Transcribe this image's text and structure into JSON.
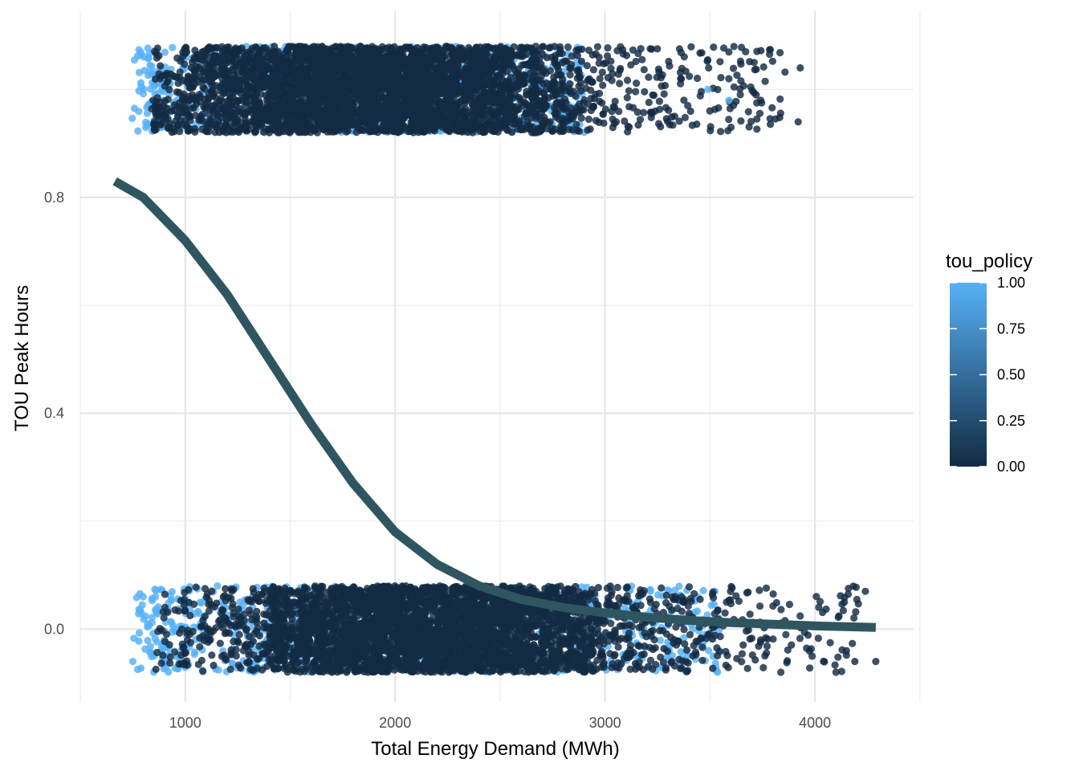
{
  "chart_data": {
    "type": "scatter",
    "title": "",
    "xlabel": "Total Energy Demand (MWh)",
    "ylabel": "TOU Peak Hours",
    "xlim": [
      500,
      4470
    ],
    "ylim": [
      -0.135,
      1.145
    ],
    "x_ticks": [
      1000,
      2000,
      3000,
      4000
    ],
    "x_tick_labels": [
      "1000",
      "2000",
      "3000",
      "4000"
    ],
    "y_ticks": [
      0.0,
      0.4,
      0.8
    ],
    "y_tick_labels": [
      "0.0",
      "0.4",
      "0.8"
    ],
    "grid": true,
    "legend": {
      "title": "tou_policy",
      "position": "right",
      "type": "colorbar",
      "range": [
        0,
        1
      ],
      "tick_labels": [
        "1.00",
        "0.75",
        "0.50",
        "0.25",
        "0.00"
      ],
      "tick_values": [
        1.0,
        0.75,
        0.5,
        0.25,
        0.0
      ],
      "color_low": "#132B43",
      "color_high": "#56B1F7"
    },
    "series": [
      {
        "kind": "jittered-points",
        "y_level": 1,
        "jitter": 0.08,
        "point_colors": {
          "policy_0": "#132B43",
          "policy_1": "#56B1F7"
        },
        "x_range": [
          740,
          3940
        ],
        "dense_range": [
          1100,
          2650
        ],
        "extreme_points": [
          [
            3930,
            1.04
          ],
          [
            3920,
            0.94
          ],
          [
            3670,
            1.07
          ],
          [
            3710,
            1.05
          ],
          [
            3590,
            1.02
          ],
          [
            3600,
            0.93
          ],
          [
            3490,
            1.0
          ],
          [
            3590,
            0.98
          ],
          [
            3720,
            0.99
          ]
        ]
      },
      {
        "kind": "jittered-points",
        "y_level": 0,
        "jitter": 0.08,
        "point_colors": {
          "policy_0": "#132B43",
          "policy_1": "#56B1F7"
        },
        "x_range": [
          750,
          4290
        ],
        "dense_range": [
          1400,
          2900
        ],
        "extreme_points": [
          [
            4290,
            -0.06
          ],
          [
            4240,
            0.07
          ],
          [
            4190,
            -0.06
          ],
          [
            4150,
            -0.04
          ],
          [
            4140,
            0.05
          ],
          [
            4100,
            -0.08
          ],
          [
            750,
            -0.06
          ],
          [
            790,
            0.03
          ],
          [
            800,
            0.06
          ]
        ]
      },
      {
        "kind": "logistic-fit-line",
        "color": "#2F5660",
        "x": [
          665,
          800,
          1000,
          1200,
          1400,
          1600,
          1800,
          2000,
          2200,
          2400,
          2600,
          2800,
          3000,
          3200,
          3400,
          3600,
          3800,
          4000,
          4200,
          4290
        ],
        "y": [
          0.83,
          0.8,
          0.72,
          0.62,
          0.5,
          0.38,
          0.27,
          0.18,
          0.12,
          0.08,
          0.055,
          0.04,
          0.03,
          0.022,
          0.016,
          0.012,
          0.009,
          0.006,
          0.004,
          0.003
        ]
      }
    ]
  }
}
